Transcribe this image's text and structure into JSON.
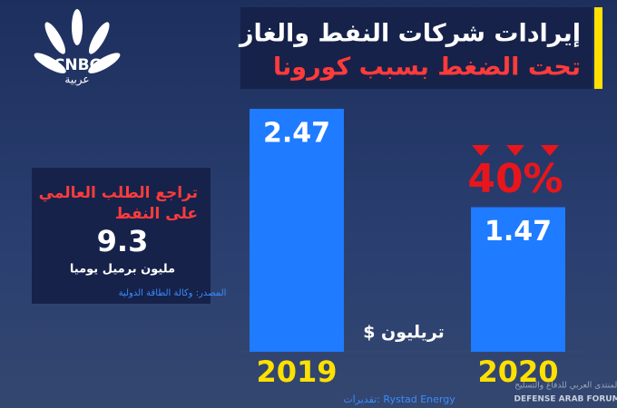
{
  "chart_data": {
    "type": "bar",
    "title": "إيرادات شركات النفط والغاز",
    "subtitle": "تحت الضغط بسبب كورونا",
    "categories": [
      "2019",
      "2020"
    ],
    "values": [
      2.47,
      1.47
    ],
    "color": "#1f7bff",
    "unit_label": "تريليون $",
    "annotation": "40%",
    "source": "تقديرات: Rystad Energy"
  },
  "side_box": {
    "title_line1": "تراجع الطلب العالمي",
    "title_line2": "على النفط",
    "value": 9.3,
    "unit": "مليون برميل يوميا",
    "source": "المصدر: وكالة الطاقة الدولية"
  },
  "logo": {
    "name": "CNBC",
    "sub": "عربية"
  },
  "watermark": {
    "arabic": "المنتدى العربي للدفاع والتسليح",
    "english": "DEFENSE ARAB FORUM"
  }
}
